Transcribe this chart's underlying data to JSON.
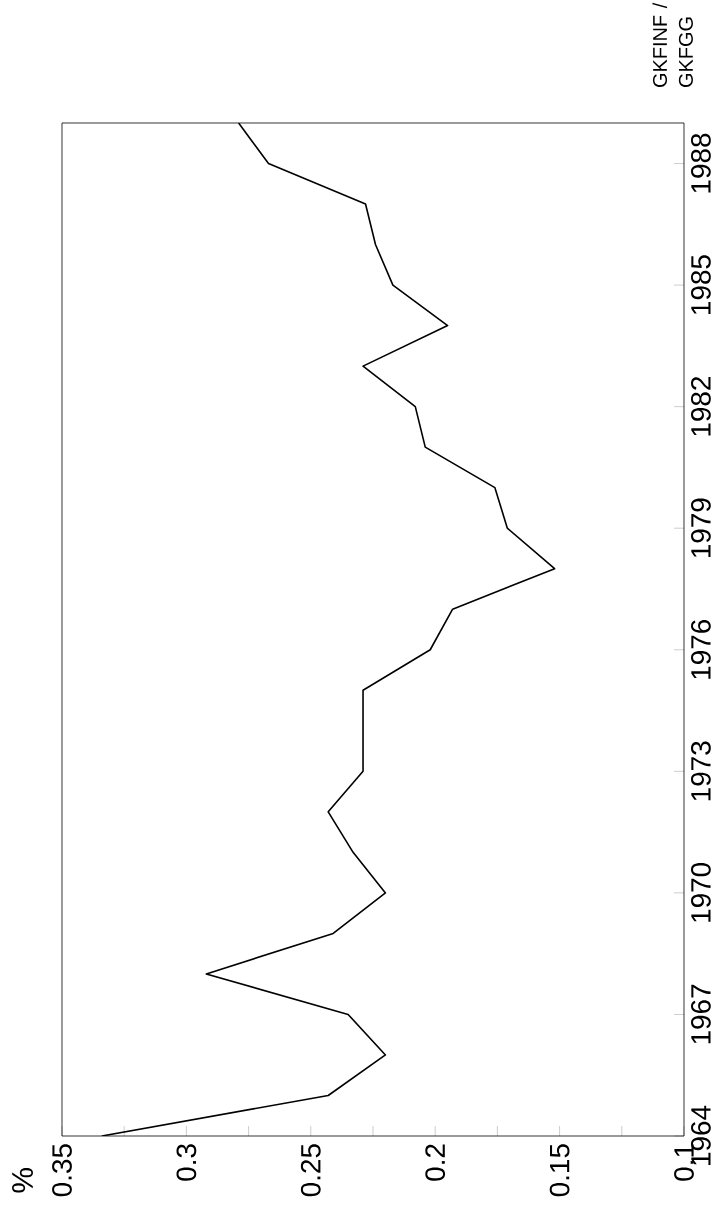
{
  "chart_data": {
    "type": "line",
    "annotations": [
      "%"
    ],
    "ylabel": "GKFINF / GKFGG",
    "x": [
      0.334,
      0.243,
      0.22,
      0.235,
      0.292,
      0.241,
      0.22,
      0.233,
      0.243,
      0.229,
      0.229,
      0.202,
      0.193,
      0.152,
      0.171,
      0.176,
      0.204,
      0.208,
      0.229,
      0.195,
      0.217,
      0.224,
      0.228,
      0.267,
      0.279
    ],
    "series": [
      {
        "color": "#000000",
        "values": [
          1964,
          1965,
          1966,
          1967,
          1968,
          1969,
          1970,
          1971,
          1972,
          1973,
          1975,
          1976,
          1977,
          1978,
          1979,
          1980,
          1981,
          1982,
          1983,
          1984,
          1985,
          1986,
          1987,
          1988,
          1989
        ]
      }
    ],
    "ylim": [
      1964,
      1989
    ],
    "yticks": [
      1964,
      1967,
      1970,
      1973,
      1976,
      1979,
      1982,
      1985,
      1988
    ],
    "xlim": [
      0.35,
      0.1
    ],
    "xticks": [
      0.1,
      {
        "value": 0.125,
        "label": null
      },
      0.15,
      {
        "value": 0.175,
        "label": null
      },
      0.2,
      {
        "value": 0.225,
        "label": null
      },
      0.25,
      {
        "value": 0.275,
        "label": null
      },
      0.3,
      {
        "value": 0.325,
        "label": null
      },
      0.35
    ],
    "line_style": "solid",
    "marker": "none",
    "grid": false
  }
}
